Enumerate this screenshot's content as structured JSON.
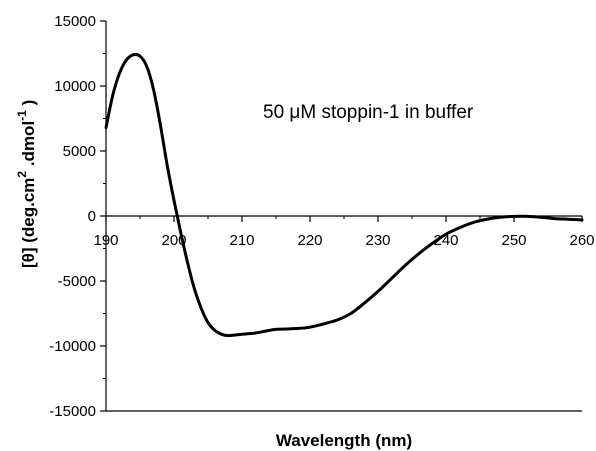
{
  "chart_data": {
    "type": "line",
    "title": "",
    "xlabel": "Wavelength (nm)",
    "ylabel": {
      "main": "[θ] (deg.cm",
      "sup1": "2",
      "mid": " .dmol",
      "sup2": "-1",
      "end": " )"
    },
    "annotation": "50 μM stoppin-1 in buffer",
    "xlim": [
      190,
      260
    ],
    "ylim": [
      -15000,
      15000
    ],
    "x_ticks": [
      190,
      200,
      210,
      220,
      230,
      240,
      250,
      260
    ],
    "y_ticks": [
      15000,
      10000,
      5000,
      0,
      -5000,
      -10000,
      -15000
    ],
    "grid": false,
    "series": [
      {
        "color": "#000000",
        "x": [
          190,
          191,
          192,
          193,
          194,
          195,
          196,
          197,
          198,
          199,
          200,
          201,
          202,
          203,
          204,
          205,
          206,
          207,
          208,
          209,
          210,
          211,
          212,
          213,
          214,
          215,
          216,
          217,
          218,
          219,
          220,
          222,
          224,
          226,
          228,
          230,
          232,
          234,
          236,
          238,
          240,
          242,
          244,
          246,
          248,
          250,
          252,
          254,
          256,
          258,
          260
        ],
        "y": [
          6800,
          9300,
          11000,
          12000,
          12400,
          12300,
          11500,
          9700,
          7000,
          3900,
          1200,
          -1300,
          -3600,
          -5600,
          -7100,
          -8200,
          -8800,
          -9100,
          -9200,
          -9150,
          -9100,
          -9050,
          -9000,
          -8900,
          -8800,
          -8720,
          -8700,
          -8680,
          -8650,
          -8620,
          -8550,
          -8300,
          -8000,
          -7500,
          -6700,
          -5800,
          -4800,
          -3800,
          -2900,
          -2100,
          -1400,
          -900,
          -500,
          -250,
          -100,
          -30,
          -30,
          -100,
          -200,
          -250,
          -300
        ]
      }
    ]
  }
}
